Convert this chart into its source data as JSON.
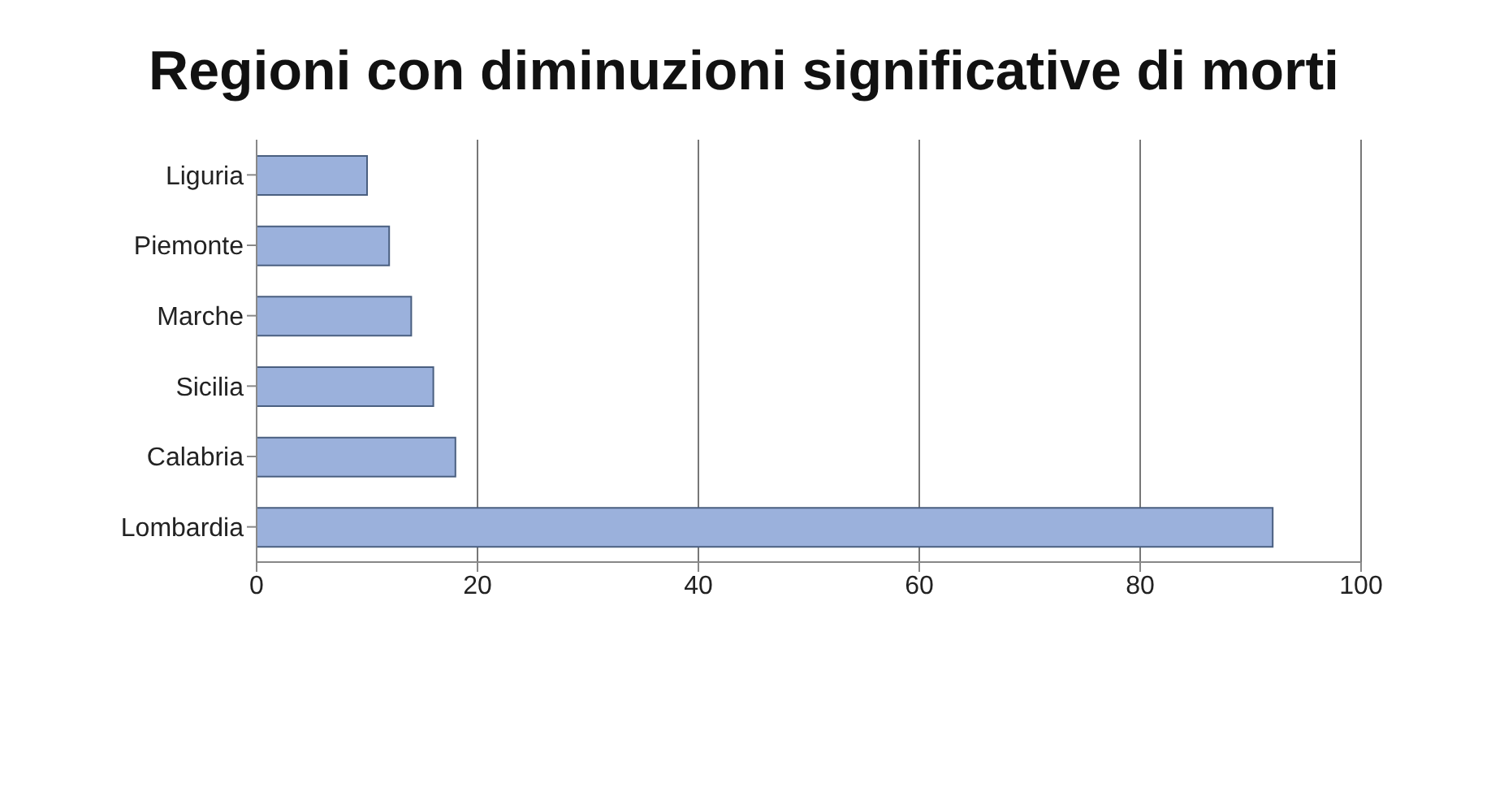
{
  "chart_data": {
    "type": "bar",
    "orientation": "horizontal",
    "title": "Regioni con diminuzioni significative di morti",
    "categories": [
      "Liguria",
      "Piemonte",
      "Marche",
      "Sicilia",
      "Calabria",
      "Lombardia"
    ],
    "values": [
      10,
      12,
      14,
      16,
      18,
      92
    ],
    "color": "#9bb1dc",
    "xlim": [
      0,
      100
    ],
    "xticks": [
      0,
      20,
      40,
      60,
      80,
      100
    ],
    "grid": "x"
  }
}
